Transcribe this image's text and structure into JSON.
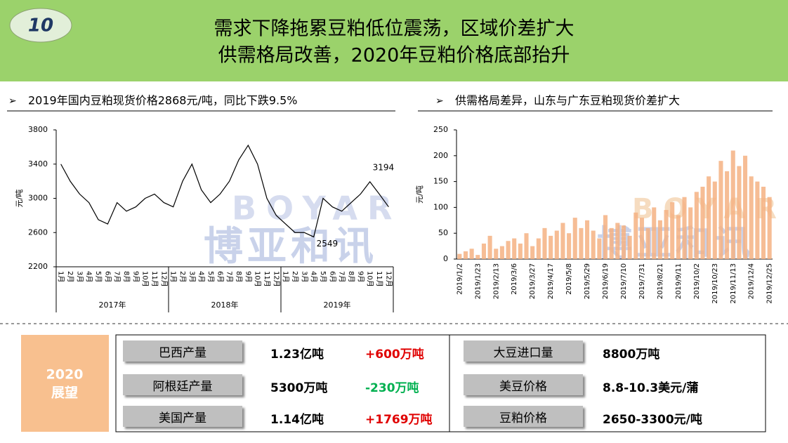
{
  "header": {
    "badge": "10",
    "title_lines": [
      "需求下降拖累豆粕低位震荡，区域价差扩大",
      "供需格局改善，2020年豆粕价格底部抬升"
    ]
  },
  "watermark": [
    "BOYAR",
    "博亚和讯"
  ],
  "chart_data": [
    {
      "type": "line",
      "title": "2019年国内豆粕现货价格2868元/吨，同比下跌9.5%",
      "y_label": "元/吨",
      "color": "#000000",
      "categories": [
        "1月",
        "2月",
        "3月",
        "4月",
        "5月",
        "6月",
        "7月",
        "8月",
        "9月",
        "10月",
        "11月",
        "12月",
        "1月",
        "2月",
        "3月",
        "4月",
        "5月",
        "6月",
        "7月",
        "8月",
        "9月",
        "10月",
        "11月",
        "12月",
        "1月",
        "2月",
        "3月",
        "4月",
        "5月",
        "6月",
        "7月",
        "8月",
        "9月",
        "10月",
        "11月",
        "12月"
      ],
      "groups": [
        "2017年",
        "2018年",
        "2019年"
      ],
      "values": [
        3400,
        3200,
        3050,
        2950,
        2750,
        2700,
        2950,
        2850,
        2900,
        3000,
        3050,
        2950,
        2900,
        3200,
        3400,
        3100,
        2950,
        3050,
        3200,
        3450,
        3620,
        3400,
        3000,
        2800,
        2700,
        2600,
        2600,
        2549,
        3000,
        2900,
        2850,
        2950,
        3050,
        3194,
        3050,
        2900
      ],
      "value_labels": [
        null,
        null,
        null,
        null,
        null,
        null,
        null,
        null,
        null,
        null,
        null,
        null,
        null,
        null,
        null,
        null,
        null,
        null,
        null,
        null,
        null,
        null,
        null,
        null,
        null,
        null,
        null,
        "2549",
        null,
        null,
        null,
        null,
        null,
        "3194",
        null,
        null
      ],
      "ylim": [
        2200,
        3800
      ],
      "yticks": [
        2200,
        2600,
        3000,
        3400,
        3800
      ]
    },
    {
      "type": "bar",
      "title": "供需格局差异，山东与广东豆粕现货价差扩大",
      "y_label": "元/吨",
      "color": "#f4b183",
      "categories": [
        "2019/1/2",
        null,
        null,
        "2019/1/23",
        null,
        null,
        "2019/2/13",
        null,
        null,
        "2019/3/6",
        null,
        null,
        "2019/3/27",
        null,
        null,
        "2019/4/17",
        null,
        null,
        "2019/5/8",
        null,
        null,
        "2019/5/29",
        null,
        null,
        "2019/6/19",
        null,
        null,
        "2019/7/10",
        null,
        null,
        "2019/7/31",
        null,
        null,
        "2019/8/21",
        null,
        null,
        "2019/9/11",
        null,
        null,
        "2019/10/2",
        null,
        null,
        "2019/10/23",
        null,
        null,
        "2019/11/13",
        null,
        null,
        "2019/12/4",
        null,
        null,
        "2019/12/25"
      ],
      "values": [
        10,
        15,
        20,
        8,
        30,
        45,
        20,
        25,
        35,
        40,
        30,
        50,
        25,
        40,
        60,
        45,
        55,
        70,
        50,
        80,
        60,
        75,
        55,
        40,
        85,
        60,
        70,
        65,
        45,
        90,
        80,
        60,
        100,
        75,
        95,
        110,
        85,
        120,
        100,
        130,
        140,
        160,
        150,
        190,
        170,
        210,
        180,
        200,
        160,
        150,
        140,
        120
      ],
      "ylim": [
        0,
        250
      ],
      "yticks": [
        0,
        50,
        100,
        150,
        200,
        250
      ]
    }
  ],
  "outlook": {
    "label": [
      "2020",
      "展望"
    ],
    "left": [
      {
        "name": "巴西产量",
        "value": "1.23亿吨",
        "change": "+600万吨",
        "color": "#e00000"
      },
      {
        "name": "阿根廷产量",
        "value": "5300万吨",
        "change": "-230万吨",
        "color": "#00b050"
      },
      {
        "name": "美国产量",
        "value": "1.14亿吨",
        "change": "+1769万吨",
        "color": "#e00000"
      }
    ],
    "right": [
      {
        "name": "大豆进口量",
        "value": "8800万吨"
      },
      {
        "name": "美豆价格",
        "value": "8.8-10.3美元/蒲"
      },
      {
        "name": "豆粕价格",
        "value": "2650-3300元/吨"
      }
    ]
  }
}
